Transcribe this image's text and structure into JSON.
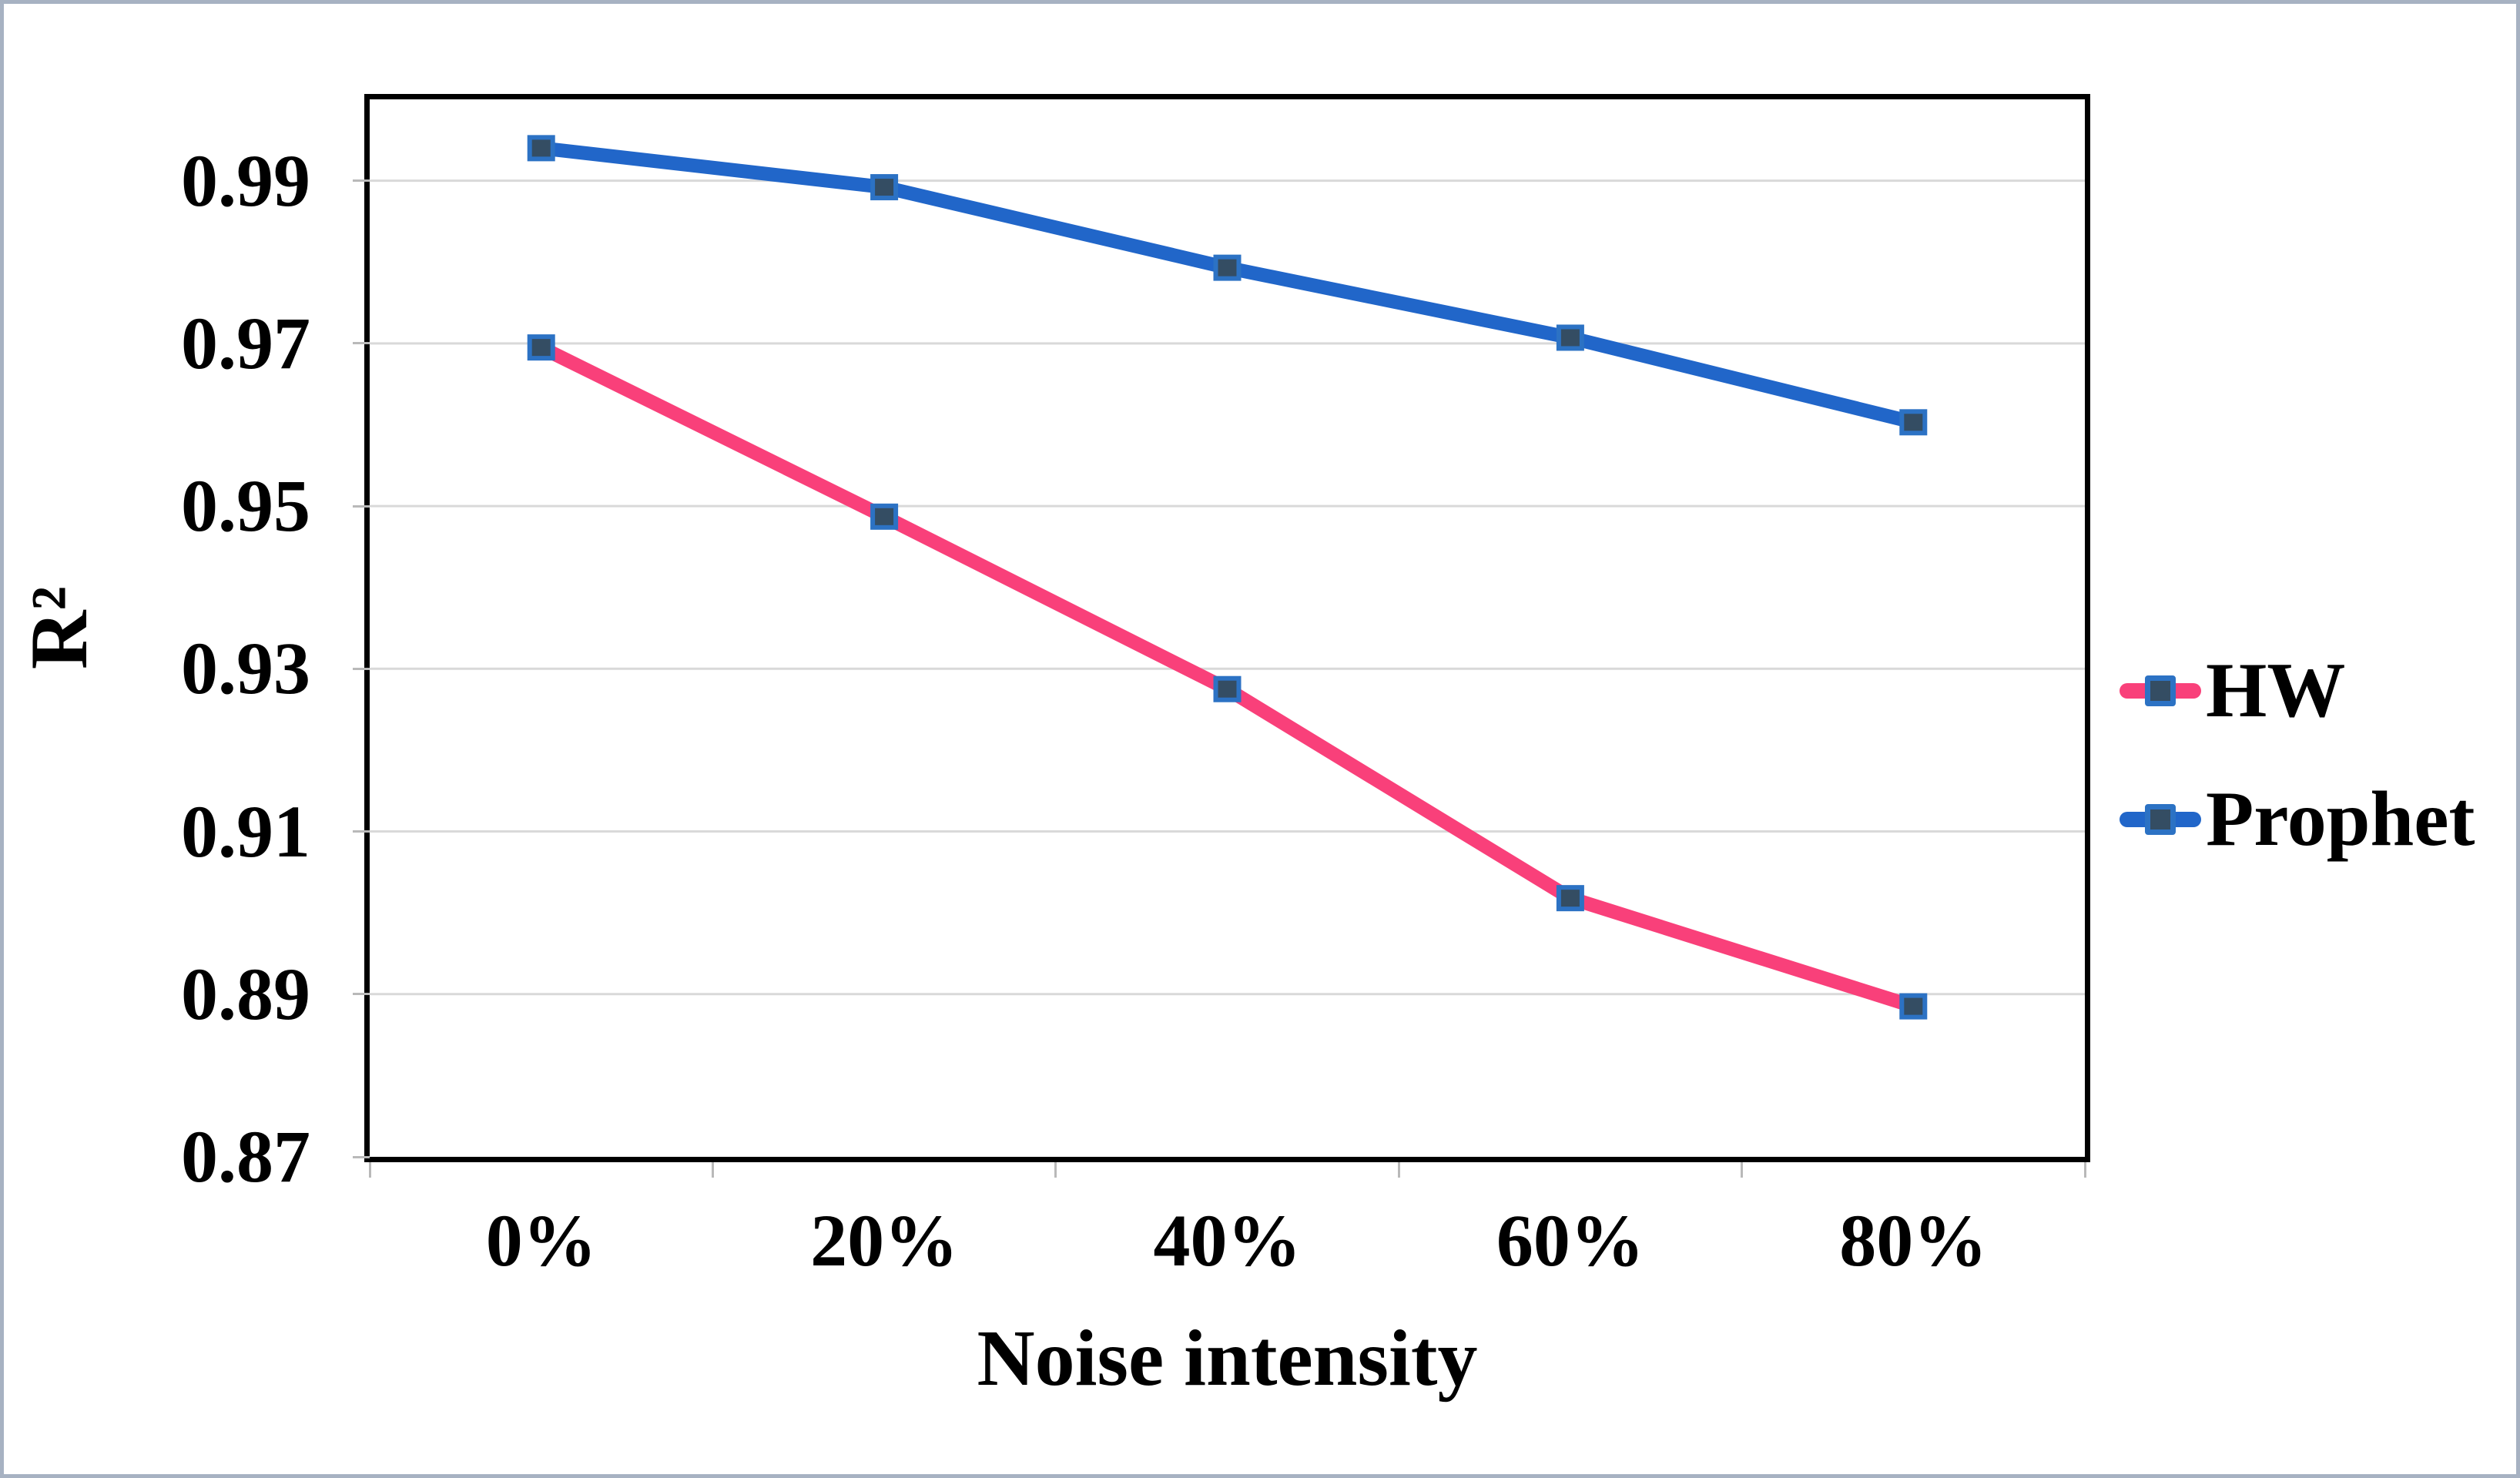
{
  "chart_data": {
    "type": "line",
    "title": "",
    "xlabel": "Noise intensity",
    "ylabel": "R²",
    "categories": [
      "0%",
      "20%",
      "40%",
      "60%",
      "80%"
    ],
    "series": [
      {
        "name": "HW",
        "color": "#F9407A",
        "values": [
          0.9695,
          0.9487,
          0.9275,
          0.9018,
          0.8885
        ]
      },
      {
        "name": "Prophet",
        "color": "#2166C9",
        "values": [
          0.994,
          0.9892,
          0.9793,
          0.9707,
          0.9603
        ]
      }
    ],
    "ylim": [
      0.87,
      1.0
    ],
    "yticks": [
      {
        "label": "0.99",
        "value": 0.99
      },
      {
        "label": "0.97",
        "value": 0.97
      },
      {
        "label": "0.95",
        "value": 0.95
      },
      {
        "label": "0.93",
        "value": 0.93
      },
      {
        "label": "0.91",
        "value": 0.91
      },
      {
        "label": "0.89",
        "value": 0.89
      },
      {
        "label": "0.87",
        "value": 0.87
      }
    ],
    "grid": "horizontal",
    "legend_position": "right-middle",
    "marker": {
      "shape": "square",
      "fill": "#344D63",
      "border": "#2C72C4"
    },
    "colors": {
      "gridline": "#D9D9D9",
      "tick_mark": "#B9B9B9",
      "plot_border": "#000000",
      "figure_border": "#A7B2C2",
      "background": "#FFFFFF"
    }
  }
}
